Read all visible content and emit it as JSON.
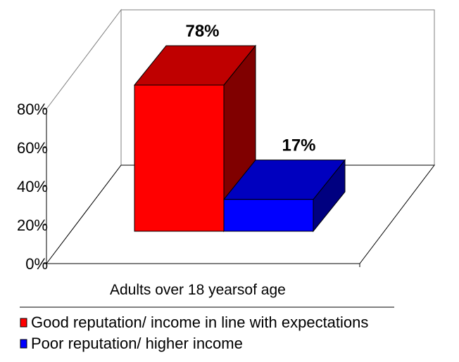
{
  "chart_data": {
    "type": "bar",
    "categories": [
      "Adults over 18 yearsof age"
    ],
    "series": [
      {
        "name": "Good reputation/ income in line with expectations",
        "values": [
          78
        ],
        "label": "78%",
        "color": "#ff0000"
      },
      {
        "name": "Poor reputation/ higher income",
        "values": [
          17
        ],
        "label": "17%",
        "color": "#0000ff"
      }
    ],
    "y_ticks": [
      "0%",
      "20%",
      "40%",
      "60%",
      "80%"
    ],
    "ylim": [
      0,
      80
    ],
    "title": "",
    "xlabel": "",
    "ylabel": "",
    "legend_position": "bottom-left",
    "grid": false,
    "three_d": true
  }
}
